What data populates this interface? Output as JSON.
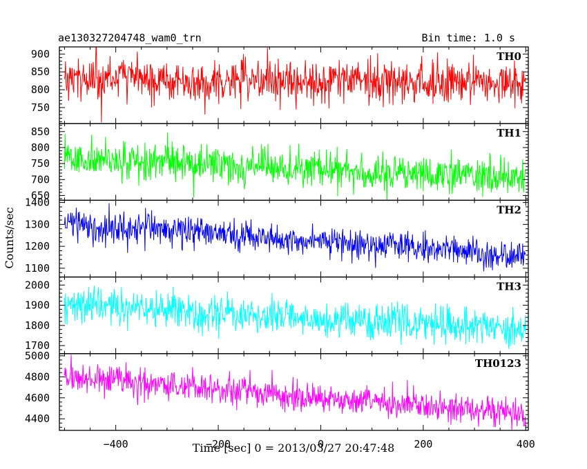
{
  "header": {
    "left_title": "ae130327204748_wam0_trn",
    "right_title": "Bin time: 1.0 s"
  },
  "chart_data": {
    "type": "line",
    "x_range": [
      -510,
      405
    ],
    "x_ticks": [
      -400,
      -200,
      0,
      200,
      400
    ],
    "x_tick_labels": [
      "−400",
      "−200",
      "0",
      "200",
      "400"
    ],
    "xlabel": "Time [sec] 0 = 2013/03/27 20:47:48",
    "ylabel": "Counts/sec",
    "x_start": -500,
    "x_end": 400,
    "bin_time": 1.0,
    "panels": [
      {
        "name": "TH0",
        "color": "#ff0000",
        "ylim": [
          705,
          920
        ],
        "y_ticks": [
          750,
          800,
          850,
          900
        ],
        "trend": {
          "x": [
            -500,
            400
          ],
          "y": [
            832,
            818
          ]
        },
        "noise_sd": 30
      },
      {
        "name": "TH1",
        "color": "#00ff00",
        "ylim": [
          635,
          875
        ],
        "y_ticks": [
          650,
          700,
          750,
          800,
          850
        ],
        "trend": {
          "x": [
            -500,
            400
          ],
          "y": [
            765,
            705
          ]
        },
        "noise_sd": 28
      },
      {
        "name": "TH2",
        "color": "#0000ff",
        "ylim": [
          1060,
          1410
        ],
        "y_ticks": [
          1100,
          1200,
          1300,
          1400
        ],
        "trend": {
          "x": [
            -500,
            -250,
            400
          ],
          "y": [
            1305,
            1265,
            1150
          ]
        },
        "noise_sd": 35
      },
      {
        "name": "TH3",
        "color": "#00ffff",
        "ylim": [
          1660,
          2040
        ],
        "y_ticks": [
          1700,
          1800,
          1900,
          2000
        ],
        "trend": {
          "x": [
            -500,
            400
          ],
          "y": [
            1900,
            1780
          ]
        },
        "noise_sd": 45
      },
      {
        "name": "TH0123",
        "color": "#ff00ff",
        "ylim": [
          4290,
          5020
        ],
        "y_ticks": [
          4400,
          4600,
          4800,
          5000
        ],
        "trend": {
          "x": [
            -500,
            -250,
            400
          ],
          "y": [
            4800,
            4700,
            4440
          ]
        },
        "noise_sd": 70
      }
    ]
  }
}
